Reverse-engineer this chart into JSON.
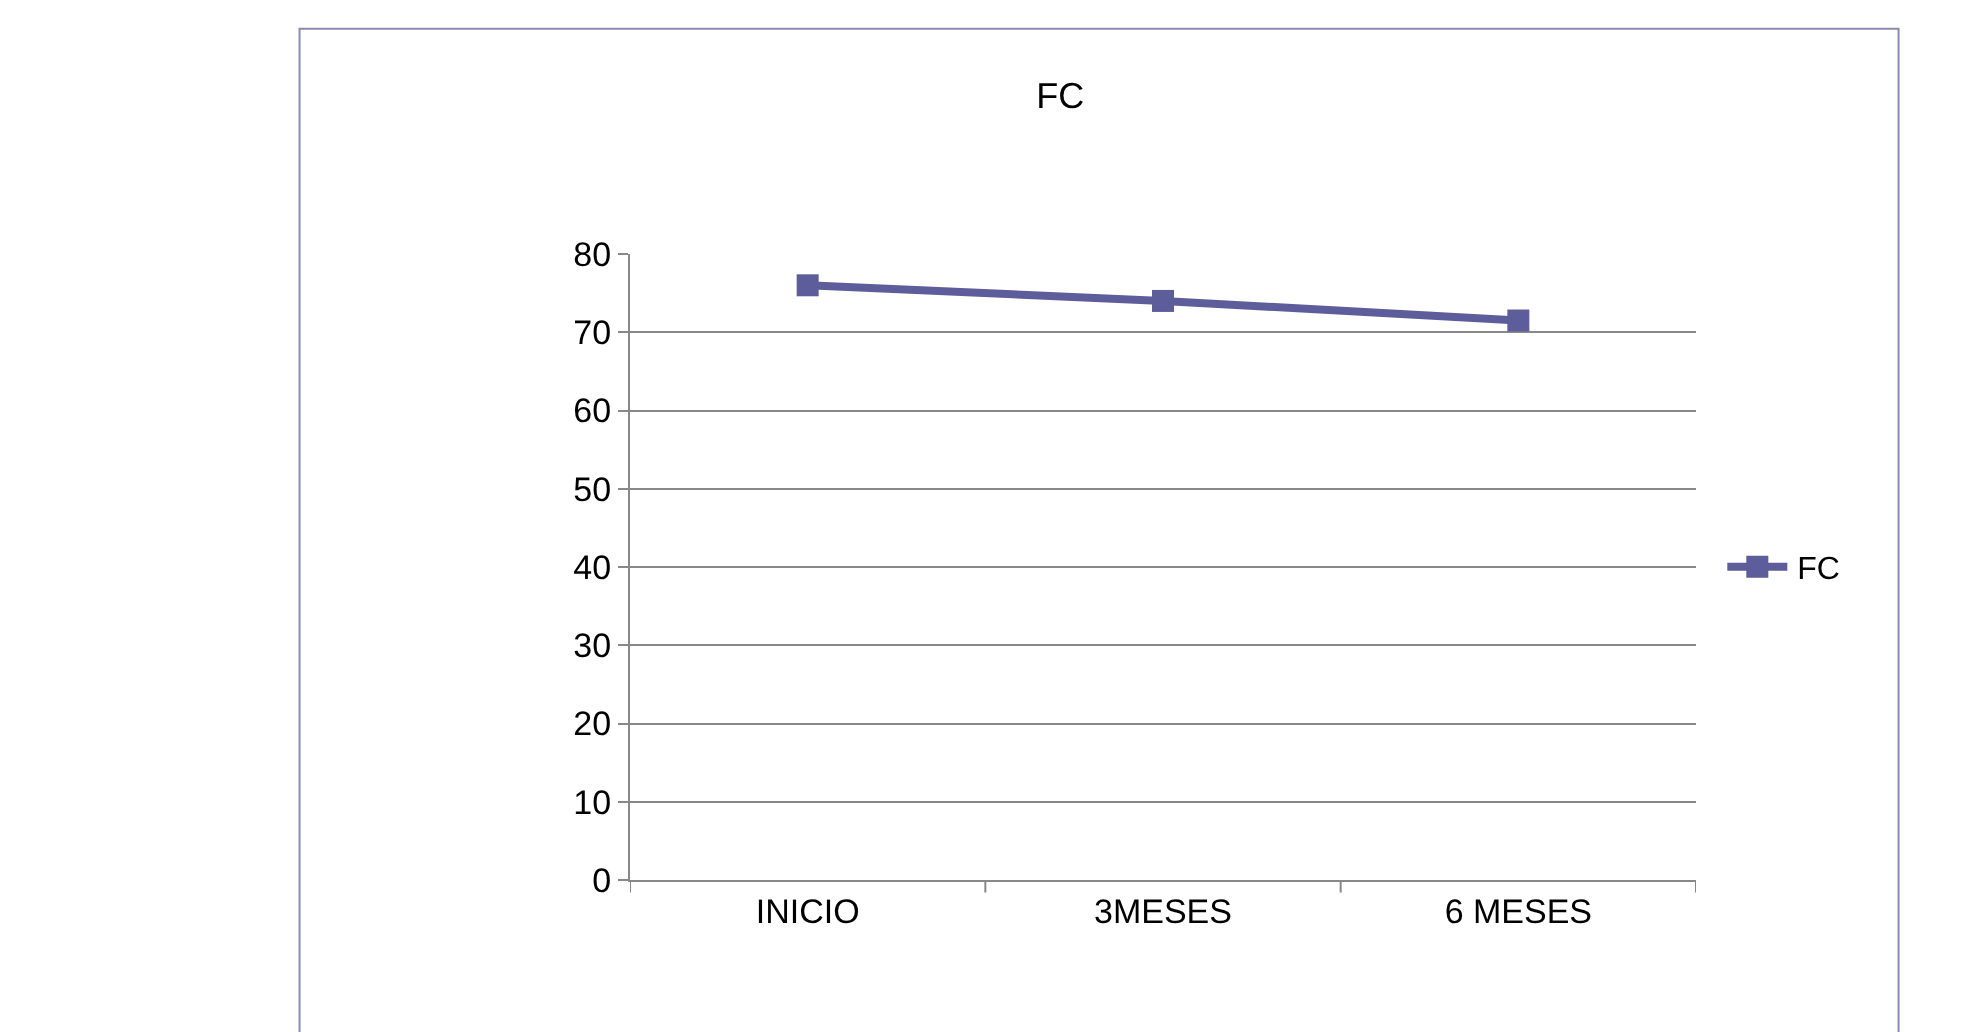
{
  "chart_data": {
    "type": "line",
    "title": "FC",
    "categories": [
      "INICIO",
      "3MESES",
      "6 MESES"
    ],
    "series": [
      {
        "name": "FC",
        "color": "#5d5d9c",
        "values": [
          76,
          74,
          71.5
        ]
      }
    ],
    "ylim": [
      0,
      80
    ],
    "yticks": [
      0,
      10,
      20,
      30,
      40,
      50,
      60,
      70,
      80
    ],
    "grid": "y",
    "legend": "right",
    "marker": "square",
    "line_style": "solid"
  }
}
